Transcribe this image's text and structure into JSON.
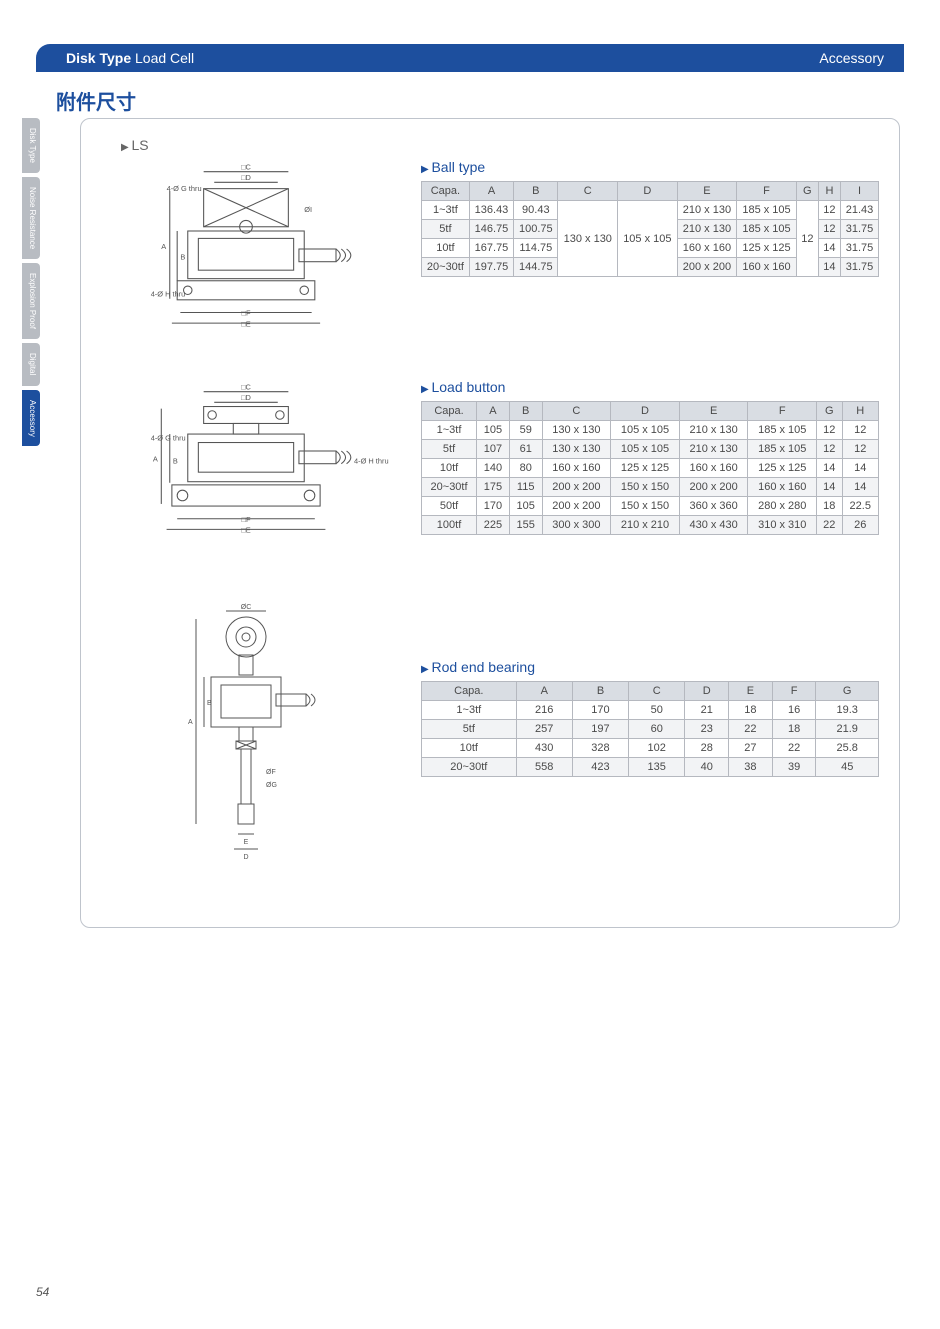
{
  "header": {
    "category_bold": "Disk Type",
    "category_light": " Load Cell",
    "right_label": "Accessory"
  },
  "section_title": "附件尺寸",
  "side_tabs": [
    {
      "label": "Disk Type",
      "style": "grey"
    },
    {
      "label": "Noise Resistance",
      "style": "grey"
    },
    {
      "label": "Explosion Proof",
      "style": "grey"
    },
    {
      "label": "Digital",
      "style": "grey"
    },
    {
      "label": "Accessory",
      "style": "blue"
    }
  ],
  "ls_label": "LS",
  "tables": {
    "ball": {
      "title": "Ball type",
      "columns": [
        "Capa.",
        "A",
        "B",
        "C",
        "D",
        "E",
        "F",
        "G",
        "H",
        "I"
      ],
      "merged_C": "130 x 130",
      "merged_D": "105 x 105",
      "merged_G": "12",
      "rows": [
        {
          "capa": "1~3tf",
          "a": "136.43",
          "b": "90.43",
          "e": "210 x 130",
          "f": "185 x 105",
          "h": "12",
          "i": "21.43"
        },
        {
          "capa": "5tf",
          "a": "146.75",
          "b": "100.75",
          "e": "210 x 130",
          "f": "185 x 105",
          "h": "12",
          "i": "31.75"
        },
        {
          "capa": "10tf",
          "a": "167.75",
          "b": "114.75",
          "e": "160 x 160",
          "f": "125 x 125",
          "h": "14",
          "i": "31.75"
        },
        {
          "capa": "20~30tf",
          "a": "197.75",
          "b": "144.75",
          "e": "200 x 200",
          "f": "160 x 160",
          "h": "14",
          "i": "31.75"
        }
      ]
    },
    "load": {
      "title": "Load button",
      "columns": [
        "Capa.",
        "A",
        "B",
        "C",
        "D",
        "E",
        "F",
        "G",
        "H"
      ],
      "rows": [
        [
          "1~3tf",
          "105",
          "59",
          "130 x 130",
          "105 x 105",
          "210 x 130",
          "185 x 105",
          "12",
          "12"
        ],
        [
          "5tf",
          "107",
          "61",
          "130 x 130",
          "105 x 105",
          "210 x 130",
          "185 x 105",
          "12",
          "12"
        ],
        [
          "10tf",
          "140",
          "80",
          "160 x 160",
          "125 x 125",
          "160 x 160",
          "125 x 125",
          "14",
          "14"
        ],
        [
          "20~30tf",
          "175",
          "115",
          "200 x 200",
          "150 x 150",
          "200 x 200",
          "160 x 160",
          "14",
          "14"
        ],
        [
          "50tf",
          "170",
          "105",
          "200 x 200",
          "150 x 150",
          "360 x 360",
          "280 x 280",
          "18",
          "22.5"
        ],
        [
          "100tf",
          "225",
          "155",
          "300 x 300",
          "210 x 210",
          "430 x 430",
          "310 x 310",
          "22",
          "26"
        ]
      ]
    },
    "rod": {
      "title": "Rod end bearing",
      "columns": [
        "Capa.",
        "A",
        "B",
        "C",
        "D",
        "E",
        "F",
        "G"
      ],
      "rows": [
        [
          "1~3tf",
          "216",
          "170",
          "50",
          "21",
          "18",
          "16",
          "19.3"
        ],
        [
          "5tf",
          "257",
          "197",
          "60",
          "23",
          "22",
          "18",
          "21.9"
        ],
        [
          "10tf",
          "430",
          "328",
          "102",
          "28",
          "27",
          "22",
          "25.8"
        ],
        [
          "20~30tf",
          "558",
          "423",
          "135",
          "40",
          "38",
          "39",
          "45"
        ]
      ]
    }
  },
  "diagram_labels": {
    "d1": [
      "□C",
      "□D",
      "4-Ø G thru",
      "ØI",
      "4-Ø H thru",
      "□F",
      "□E",
      "A",
      "B"
    ],
    "d2": [
      "□C",
      "□D",
      "4-Ø G thru",
      "4-Ø H thru",
      "□F",
      "□E",
      "A",
      "B"
    ],
    "d3": [
      "ØC",
      "A",
      "B",
      "ØF",
      "ØG",
      "E",
      "D"
    ]
  },
  "page_number": "54",
  "colors": {
    "brand_blue": "#1d4f9e",
    "table_header_bg": "#d9dde3",
    "table_stripe": "#f2f3f5",
    "tab_grey": "#b8bcc2",
    "border": "#b5b8bf"
  }
}
